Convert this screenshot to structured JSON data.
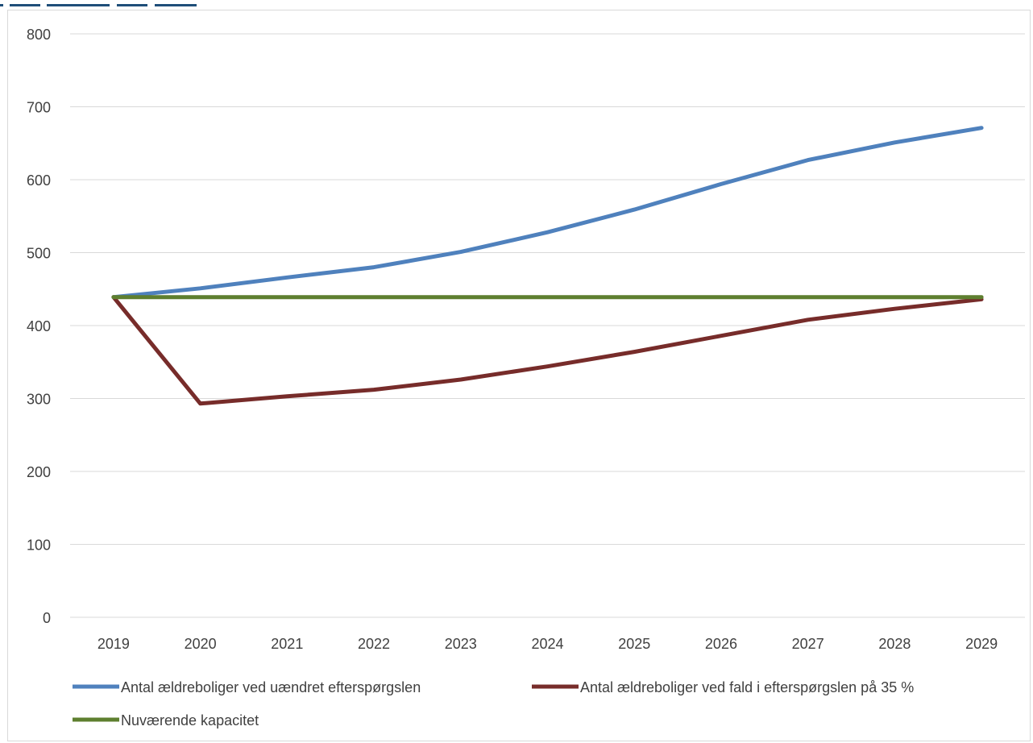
{
  "chart_data": {
    "type": "line",
    "title": "",
    "xlabel": "",
    "ylabel": "",
    "x": [
      "2019",
      "2020",
      "2021",
      "2022",
      "2023",
      "2024",
      "2025",
      "2026",
      "2027",
      "2028",
      "2029"
    ],
    "ylim": [
      0,
      800
    ],
    "yticks": [
      "0",
      "100",
      "200",
      "300",
      "400",
      "500",
      "600",
      "700",
      "800"
    ],
    "grid": true,
    "legend_position": "bottom",
    "series": [
      {
        "name": "Antal ældreboliger ved uændret efterspørgslen",
        "color": "#4f81bd",
        "values": [
          439,
          451,
          466,
          480,
          501,
          528,
          559,
          594,
          627,
          651,
          671
        ]
      },
      {
        "name": "Antal ældreboliger ved fald i efterspørgslen på 35 %",
        "color": "#772c2a",
        "values": [
          439,
          293,
          303,
          312,
          326,
          344,
          364,
          386,
          408,
          423,
          436
        ]
      },
      {
        "name": "Nuværende kapacitet",
        "color": "#5e7f2f",
        "values": [
          439,
          439,
          439,
          439,
          439,
          439,
          439,
          439,
          439,
          439,
          439
        ]
      }
    ]
  }
}
